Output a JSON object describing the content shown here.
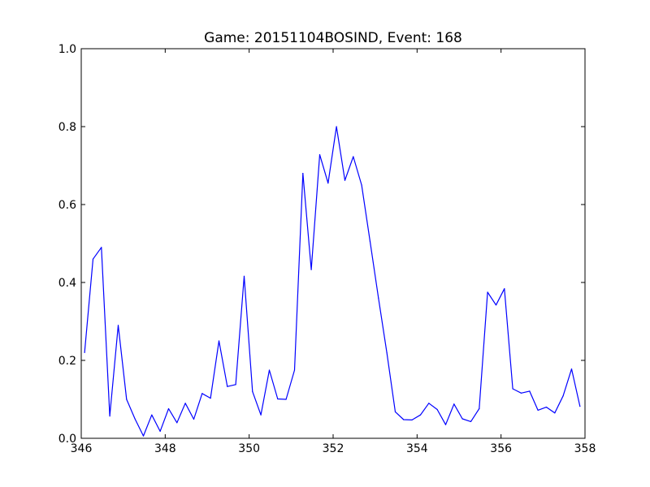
{
  "chart_data": {
    "type": "line",
    "title": "Game: 20151104BOSIND, Event: 168",
    "xlabel": "",
    "ylabel": "",
    "xlim": [
      346,
      358
    ],
    "ylim": [
      0.0,
      1.0
    ],
    "x_ticks": [
      "346",
      "348",
      "350",
      "352",
      "354",
      "356",
      "358"
    ],
    "y_ticks": [
      "0.0",
      "0.2",
      "0.4",
      "0.6",
      "0.8",
      "1.0"
    ],
    "grid": false,
    "series": [
      {
        "color": "#0000ff",
        "x": [
          346.08,
          346.28,
          346.48,
          346.68,
          346.88,
          347.08,
          347.28,
          347.48,
          347.68,
          347.88,
          348.08,
          348.28,
          348.48,
          348.68,
          348.88,
          349.08,
          349.28,
          349.48,
          349.68,
          349.88,
          350.08,
          350.28,
          350.48,
          350.68,
          350.88,
          351.08,
          351.28,
          351.48,
          351.68,
          351.88,
          352.08,
          352.28,
          352.48,
          352.68,
          352.88,
          353.08,
          353.28,
          353.48,
          353.68,
          353.88,
          354.08,
          354.28,
          354.48,
          354.68,
          354.88,
          355.08,
          355.28,
          355.48,
          355.68,
          355.88,
          356.08,
          356.28,
          356.48,
          356.68,
          356.88,
          357.08,
          357.28,
          357.48,
          357.68,
          357.88
        ],
        "y": [
          0.22,
          0.46,
          0.49,
          0.057,
          0.29,
          0.1,
          0.05,
          0.006,
          0.06,
          0.018,
          0.076,
          0.04,
          0.09,
          0.049,
          0.115,
          0.103,
          0.25,
          0.133,
          0.138,
          0.416,
          0.12,
          0.06,
          0.175,
          0.101,
          0.1,
          0.175,
          0.68,
          0.433,
          0.728,
          0.655,
          0.8,
          0.662,
          0.723,
          0.65,
          0.505,
          0.36,
          0.22,
          0.068,
          0.048,
          0.047,
          0.06,
          0.09,
          0.074,
          0.035,
          0.088,
          0.05,
          0.043,
          0.076,
          0.375,
          0.342,
          0.384,
          0.127,
          0.116,
          0.121,
          0.072,
          0.08,
          0.065,
          0.109,
          0.178,
          0.082
        ]
      }
    ]
  }
}
